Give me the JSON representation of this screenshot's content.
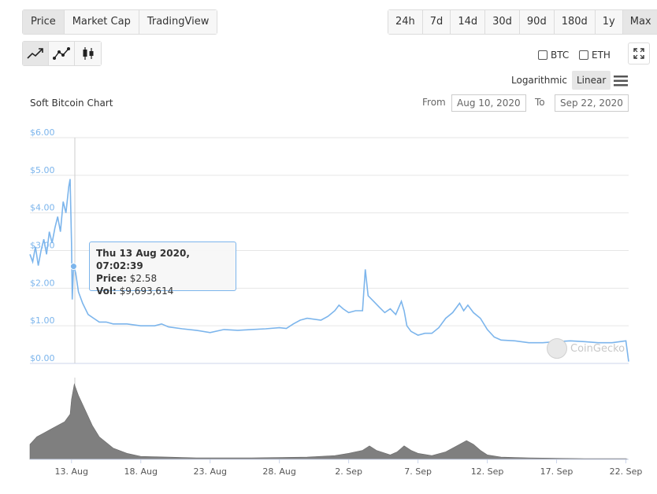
{
  "tabs": [
    {
      "label": "Price",
      "active": true
    },
    {
      "label": "Market Cap",
      "active": false
    },
    {
      "label": "TradingView",
      "active": false
    }
  ],
  "ranges": [
    {
      "label": "24h",
      "active": false
    },
    {
      "label": "7d",
      "active": false
    },
    {
      "label": "14d",
      "active": false
    },
    {
      "label": "30d",
      "active": false
    },
    {
      "label": "90d",
      "active": false
    },
    {
      "label": "180d",
      "active": false
    },
    {
      "label": "1y",
      "active": false
    },
    {
      "label": "Max",
      "active": true
    }
  ],
  "chart_types": [
    {
      "icon": "line-chart-icon",
      "active": true
    },
    {
      "icon": "point-line-chart-icon",
      "active": false
    },
    {
      "icon": "candlestick-icon",
      "active": false
    }
  ],
  "compare": {
    "btc": "BTC",
    "eth": "ETH"
  },
  "scale": {
    "log": "Logarithmic",
    "linear": "Linear",
    "active": "linear"
  },
  "chart_title": "Soft Bitcoin Chart",
  "date_range": {
    "from_label": "From",
    "from": "Aug 10, 2020",
    "to_label": "To",
    "to": "Sep 22, 2020"
  },
  "tooltip": {
    "date": "Thu 13 Aug 2020, 07:02:39",
    "price_label": "Price:",
    "price": "$2.58",
    "vol_label": "Vol:",
    "vol": "$9,693,614"
  },
  "watermark": "CoinGecko",
  "colors": {
    "line": "#7cb5ec",
    "volume": "#7f7f7f",
    "grid": "#e6e6e6"
  },
  "chart_data": {
    "type": "line",
    "ylim": [
      0,
      6
    ],
    "y_ticks": [
      "$0.00",
      "$1.00",
      "$2.00",
      "$3.00",
      "$4.00",
      "$5.00",
      "$6.00"
    ],
    "x_ticks": [
      "13. Aug",
      "18. Aug",
      "23. Aug",
      "28. Aug",
      "2. Sep",
      "7. Sep",
      "12. Sep",
      "17. Sep",
      "22. Sep"
    ],
    "x_tick_days": [
      3,
      8,
      13,
      18,
      23,
      28,
      33,
      38,
      43
    ],
    "x_range_days": [
      0,
      43.2
    ],
    "series": [
      {
        "values": [
          [
            0.0,
            2.9
          ],
          [
            0.2,
            2.7
          ],
          [
            0.4,
            3.1
          ],
          [
            0.6,
            2.6
          ],
          [
            0.8,
            3.0
          ],
          [
            1.0,
            3.3
          ],
          [
            1.2,
            2.9
          ],
          [
            1.4,
            3.5
          ],
          [
            1.6,
            3.2
          ],
          [
            1.8,
            3.6
          ],
          [
            2.0,
            3.9
          ],
          [
            2.2,
            3.5
          ],
          [
            2.4,
            4.3
          ],
          [
            2.6,
            4.0
          ],
          [
            2.8,
            4.7
          ],
          [
            2.9,
            4.9
          ],
          [
            3.0,
            3.2
          ],
          [
            3.05,
            1.7
          ],
          [
            3.15,
            2.6
          ],
          [
            3.3,
            2.4
          ],
          [
            3.5,
            1.9
          ],
          [
            3.8,
            1.6
          ],
          [
            4.2,
            1.3
          ],
          [
            4.6,
            1.2
          ],
          [
            5.0,
            1.1
          ],
          [
            5.5,
            1.1
          ],
          [
            6.0,
            1.05
          ],
          [
            7.0,
            1.05
          ],
          [
            8.0,
            1.0
          ],
          [
            9.0,
            1.0
          ],
          [
            9.5,
            1.05
          ],
          [
            10.0,
            0.97
          ],
          [
            11.0,
            0.92
          ],
          [
            12.0,
            0.88
          ],
          [
            13.0,
            0.82
          ],
          [
            14.0,
            0.9
          ],
          [
            15.0,
            0.88
          ],
          [
            16.0,
            0.9
          ],
          [
            17.0,
            0.92
          ],
          [
            18.0,
            0.95
          ],
          [
            18.5,
            0.93
          ],
          [
            19.0,
            1.05
          ],
          [
            19.5,
            1.15
          ],
          [
            20.0,
            1.2
          ],
          [
            21.0,
            1.15
          ],
          [
            21.5,
            1.25
          ],
          [
            22.0,
            1.4
          ],
          [
            22.3,
            1.55
          ],
          [
            22.6,
            1.45
          ],
          [
            23.0,
            1.35
          ],
          [
            23.5,
            1.4
          ],
          [
            24.0,
            1.4
          ],
          [
            24.2,
            2.5
          ],
          [
            24.4,
            1.8
          ],
          [
            24.8,
            1.65
          ],
          [
            25.2,
            1.5
          ],
          [
            25.6,
            1.35
          ],
          [
            26.0,
            1.45
          ],
          [
            26.4,
            1.3
          ],
          [
            26.8,
            1.65
          ],
          [
            27.0,
            1.4
          ],
          [
            27.2,
            1.0
          ],
          [
            27.5,
            0.85
          ],
          [
            28.0,
            0.75
          ],
          [
            28.5,
            0.8
          ],
          [
            29.0,
            0.8
          ],
          [
            29.5,
            0.95
          ],
          [
            30.0,
            1.2
          ],
          [
            30.5,
            1.35
          ],
          [
            31.0,
            1.6
          ],
          [
            31.3,
            1.4
          ],
          [
            31.6,
            1.55
          ],
          [
            32.0,
            1.35
          ],
          [
            32.5,
            1.2
          ],
          [
            33.0,
            0.9
          ],
          [
            33.5,
            0.7
          ],
          [
            34.0,
            0.62
          ],
          [
            35.0,
            0.6
          ],
          [
            36.0,
            0.55
          ],
          [
            37.0,
            0.55
          ],
          [
            38.0,
            0.58
          ],
          [
            39.0,
            0.6
          ],
          [
            40.0,
            0.58
          ],
          [
            41.0,
            0.55
          ],
          [
            42.0,
            0.55
          ],
          [
            43.0,
            0.6
          ],
          [
            43.2,
            0.05
          ]
        ]
      }
    ],
    "volume": [
      [
        0.0,
        0.2
      ],
      [
        0.5,
        0.3
      ],
      [
        1.0,
        0.35
      ],
      [
        1.5,
        0.4
      ],
      [
        2.0,
        0.45
      ],
      [
        2.5,
        0.5
      ],
      [
        2.9,
        0.6
      ],
      [
        3.0,
        0.8
      ],
      [
        3.2,
        1.0
      ],
      [
        3.5,
        0.85
      ],
      [
        4.0,
        0.65
      ],
      [
        4.5,
        0.45
      ],
      [
        5.0,
        0.3
      ],
      [
        6.0,
        0.15
      ],
      [
        7.0,
        0.08
      ],
      [
        8.0,
        0.04
      ],
      [
        10.0,
        0.03
      ],
      [
        12.0,
        0.02
      ],
      [
        16.0,
        0.02
      ],
      [
        20.0,
        0.03
      ],
      [
        22.0,
        0.05
      ],
      [
        23.0,
        0.08
      ],
      [
        24.0,
        0.12
      ],
      [
        24.5,
        0.18
      ],
      [
        25.0,
        0.12
      ],
      [
        26.0,
        0.06
      ],
      [
        26.5,
        0.1
      ],
      [
        27.0,
        0.18
      ],
      [
        27.5,
        0.12
      ],
      [
        28.0,
        0.08
      ],
      [
        29.0,
        0.05
      ],
      [
        30.0,
        0.1
      ],
      [
        30.5,
        0.15
      ],
      [
        31.0,
        0.2
      ],
      [
        31.5,
        0.25
      ],
      [
        32.0,
        0.2
      ],
      [
        32.5,
        0.12
      ],
      [
        33.0,
        0.06
      ],
      [
        34.0,
        0.03
      ],
      [
        36.0,
        0.02
      ],
      [
        40.0,
        0.01
      ],
      [
        43.0,
        0.01
      ],
      [
        43.2,
        0.0
      ]
    ]
  }
}
